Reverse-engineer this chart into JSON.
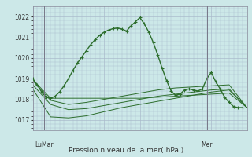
{
  "background_color": "#cce8e8",
  "plot_bg_color": "#cce8e8",
  "grid_color": "#aabbcc",
  "line_color": "#2d6e2d",
  "marker_color": "#2d6e2d",
  "title": "Pression niveau de la mer( hPa )",
  "ylim": [
    1016.5,
    1022.5
  ],
  "yticks": [
    1017,
    1018,
    1019,
    1020,
    1021,
    1022
  ],
  "xlabel_left": "LuMar",
  "xlabel_right": "Mer",
  "xlim": [
    0,
    48
  ],
  "vline_left_x": 2.5,
  "vline_right_x": 39,
  "line1_x": [
    0,
    1,
    2,
    3,
    4,
    5,
    6,
    7,
    8,
    9,
    10,
    11,
    12,
    13,
    14,
    15,
    16,
    17,
    18,
    19,
    20,
    21,
    22,
    23,
    24,
    25,
    26,
    27,
    28,
    29,
    30,
    31,
    32,
    33,
    34,
    35,
    36,
    37,
    38,
    39,
    40,
    41,
    42,
    43,
    44,
    45,
    46,
    47
  ],
  "line1_y": [
    1019.0,
    1018.7,
    1018.35,
    1018.1,
    1018.05,
    1018.15,
    1018.35,
    1018.65,
    1019.0,
    1019.4,
    1019.75,
    1020.05,
    1020.35,
    1020.65,
    1020.9,
    1021.1,
    1021.25,
    1021.35,
    1021.42,
    1021.45,
    1021.4,
    1021.3,
    1021.55,
    1021.75,
    1021.95,
    1021.65,
    1021.25,
    1020.75,
    1020.15,
    1019.5,
    1018.9,
    1018.4,
    1018.2,
    1018.25,
    1018.45,
    1018.5,
    1018.45,
    1018.4,
    1018.5,
    1019.0,
    1019.3,
    1018.85,
    1018.5,
    1018.1,
    1017.85,
    1017.65,
    1017.6,
    1017.6
  ],
  "line2_x": [
    0,
    4,
    8,
    12,
    16,
    20,
    24,
    28,
    32,
    36,
    40,
    44,
    48
  ],
  "line2_y": [
    1018.95,
    1018.05,
    1018.05,
    1018.05,
    1018.05,
    1018.05,
    1018.05,
    1018.1,
    1018.15,
    1018.2,
    1018.25,
    1018.3,
    1017.6
  ],
  "line3_x": [
    0,
    4,
    8,
    12,
    16,
    20,
    24,
    28,
    32,
    36,
    40,
    44,
    48
  ],
  "line3_y": [
    1018.7,
    1017.75,
    1017.5,
    1017.55,
    1017.7,
    1017.85,
    1018.0,
    1018.15,
    1018.25,
    1018.35,
    1018.45,
    1018.5,
    1017.6
  ],
  "line4_x": [
    0,
    4,
    8,
    12,
    16,
    20,
    24,
    28,
    32,
    36,
    40,
    44,
    48
  ],
  "line4_y": [
    1018.5,
    1017.15,
    1017.1,
    1017.2,
    1017.4,
    1017.6,
    1017.75,
    1017.9,
    1018.05,
    1018.2,
    1018.35,
    1018.45,
    1017.6
  ],
  "line5_x": [
    0,
    4,
    8,
    12,
    16,
    20,
    24,
    28,
    32,
    36,
    40,
    44,
    48
  ],
  "line5_y": [
    1018.9,
    1017.95,
    1017.75,
    1017.85,
    1018.0,
    1018.15,
    1018.3,
    1018.45,
    1018.55,
    1018.6,
    1018.65,
    1018.7,
    1017.6
  ]
}
